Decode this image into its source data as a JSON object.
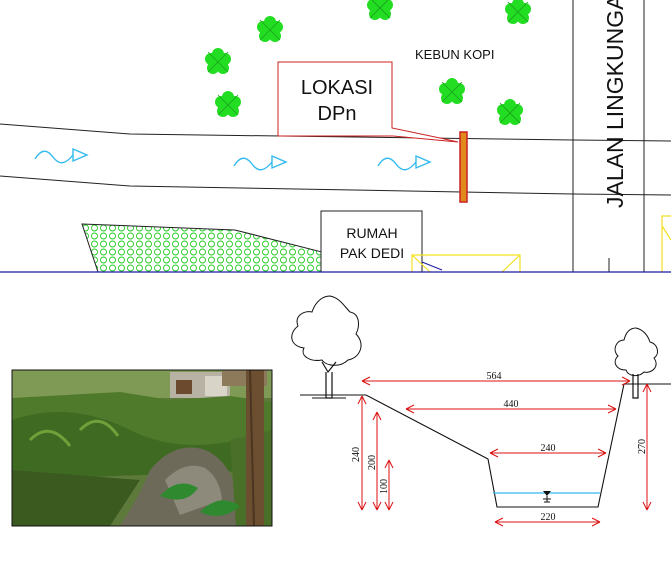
{
  "site_plan": {
    "garden_label": "KEBUN KOPI",
    "location_label_line1": "LOKASI",
    "location_label_line2": "DPn",
    "road_label": "JALAN LINGKUNGAN",
    "house_label_line1": "RUMAH",
    "house_label_line2": "PAK DEDI",
    "colors": {
      "tree": "#22dd22",
      "flow_arrow": "#33bbee",
      "callout": "#cc2222",
      "weir_fill": "#e08a1e",
      "hatch": "#22cc22",
      "ground_line": "#1a1aa0",
      "yellow_box": "#f2e020"
    }
  },
  "photo": {
    "description_icon": "stream-photo"
  },
  "cross_section": {
    "top_width": "564",
    "upper_width": "440",
    "lower_width": "240",
    "bottom_width": "220",
    "left_depth_total": "240",
    "left_depth_mid": "200",
    "left_depth_low": "100",
    "right_depth": "270",
    "colors": {
      "dimension": "#dd1111",
      "water": "#33bbee",
      "outline": "#111111"
    }
  }
}
